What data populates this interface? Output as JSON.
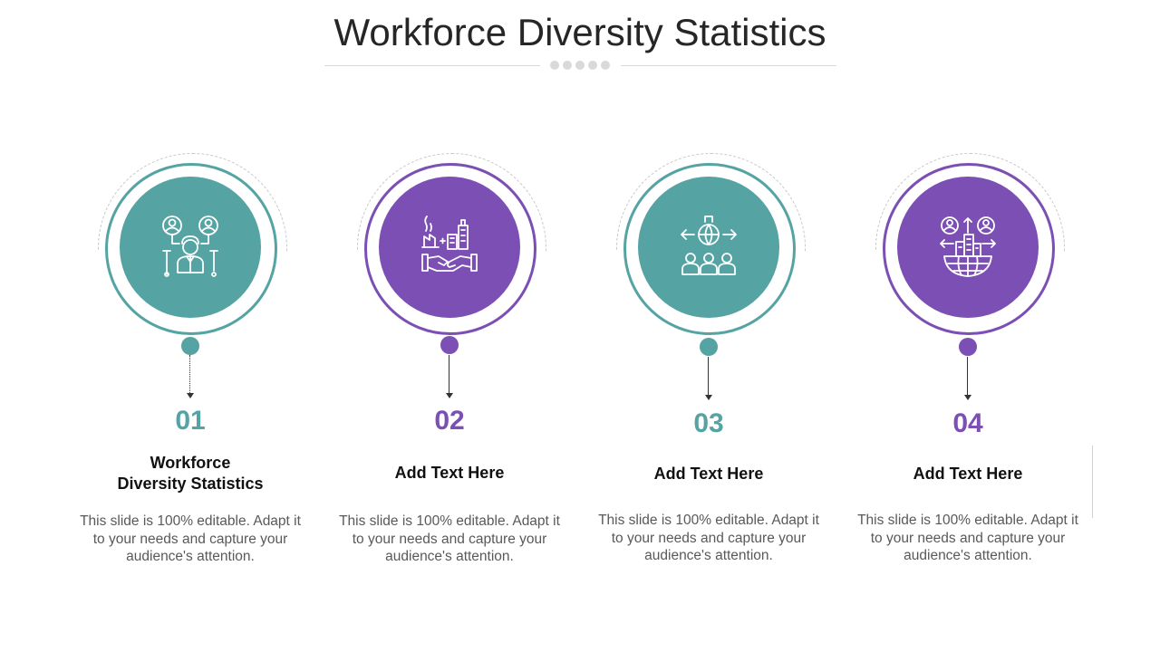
{
  "slide": {
    "title": "Workforce Diversity Statistics"
  },
  "colors": {
    "teal": "#55a3a3",
    "purple": "#7b4fb3",
    "rule_gray": "#d9d9d9"
  },
  "steps": [
    {
      "number": "01",
      "heading": "Workforce Diversity Statistics",
      "heading_line1": "Workforce",
      "heading_line2": "Diversity Statistics",
      "description": "This slide is 100% editable. Adapt it to your needs and capture your audience's attention.",
      "color": "teal",
      "icon": "workforce-network-icon"
    },
    {
      "number": "02",
      "heading": "Add Text Here",
      "description": "This slide is 100% editable. Adapt it to your needs and capture your audience's attention.",
      "color": "purple",
      "icon": "business-handshake-icon"
    },
    {
      "number": "03",
      "heading": "Add Text Here",
      "description": "This slide is 100% editable. Adapt it to your needs and capture your audience's attention.",
      "color": "teal",
      "icon": "global-team-icon"
    },
    {
      "number": "04",
      "heading": "Add Text Here",
      "description": "This slide is 100% editable. Adapt it to your needs and capture your audience's attention.",
      "color": "purple",
      "icon": "global-business-exchange-icon"
    }
  ]
}
